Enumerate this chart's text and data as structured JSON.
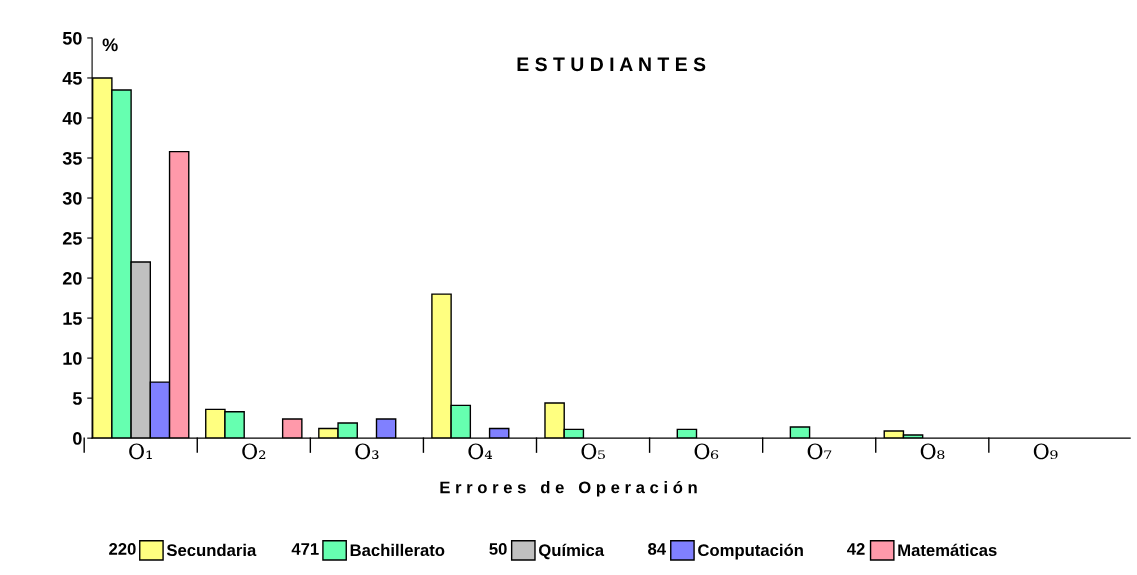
{
  "chart_data": {
    "type": "bar",
    "title": "E S T U D I A N T E S",
    "ylabel": "%",
    "xlabel": "E r r o r e s   d e   O p e r a c i ó n",
    "categories": [
      "O₁",
      "O₂",
      "O₃",
      "O₄",
      "O₅",
      "O₆",
      "O₇",
      "O₈",
      "O₉"
    ],
    "series": [
      {
        "name": "Secundaria",
        "color": "#ffff80",
        "values": [
          45,
          3.6,
          1.2,
          18,
          4.4,
          null,
          null,
          0.9,
          null
        ]
      },
      {
        "name": "Bachillerato",
        "color": "#66ffb0",
        "values": [
          43.5,
          3.3,
          1.9,
          4.1,
          1.1,
          1.1,
          1.4,
          0.4,
          null
        ]
      },
      {
        "name": "Química",
        "color": "#c0c0c0",
        "values": [
          22,
          null,
          null,
          null,
          null,
          null,
          null,
          null,
          null
        ]
      },
      {
        "name": "Computación",
        "color": "#8080ff",
        "values": [
          7,
          null,
          2.4,
          1.2,
          null,
          null,
          null,
          null,
          null
        ]
      },
      {
        "name": "Matemáticas",
        "color": "#ff99aa",
        "values": [
          35.8,
          2.4,
          null,
          null,
          null,
          null,
          null,
          null,
          null
        ]
      }
    ],
    "annotations": [
      "220",
      "471",
      "50",
      "84",
      "42"
    ],
    "ylim": [
      0,
      50
    ],
    "yticks": [
      0,
      5,
      10,
      15,
      20,
      25,
      30,
      35,
      40,
      45,
      50
    ],
    "grid": false,
    "legend": "bottom"
  }
}
